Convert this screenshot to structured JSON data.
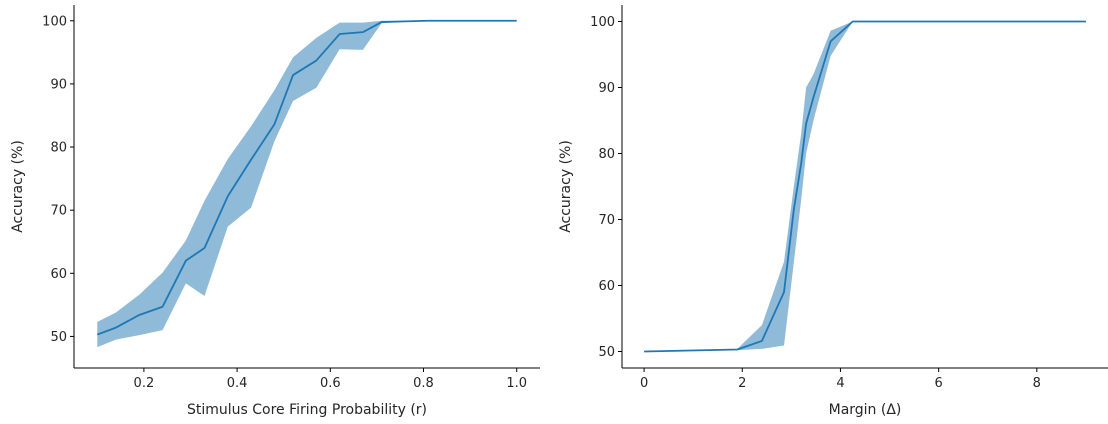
{
  "chart_data": [
    {
      "type": "line",
      "xlabel": "Stimulus Core Firing Probability (r)",
      "ylabel": "Accuracy (%)",
      "xlim": [
        0.05,
        1.05
      ],
      "ylim": [
        45,
        102.5
      ],
      "xticks": [
        0.2,
        0.4,
        0.6,
        0.8,
        1.0
      ],
      "xtick_labels": [
        "0.2",
        "0.4",
        "0.6",
        "0.8",
        "1.0"
      ],
      "yticks": [
        50,
        60,
        70,
        80,
        90,
        100
      ],
      "ytick_labels": [
        "50",
        "60",
        "70",
        "80",
        "90",
        "100"
      ],
      "grid": false,
      "colors": {
        "line": "#1f77b4",
        "band": "#1f77b4"
      },
      "series": [
        {
          "x": [
            0.1,
            0.14,
            0.19,
            0.24,
            0.29,
            0.33,
            0.38,
            0.43,
            0.48,
            0.52,
            0.57,
            0.62,
            0.67,
            0.71,
            0.76,
            0.81,
            0.86,
            0.9,
            0.95,
            1.0
          ],
          "y": [
            50.3,
            51.4,
            53.4,
            54.7,
            62.0,
            64.0,
            72.2,
            78.0,
            83.6,
            91.4,
            93.7,
            97.9,
            98.2,
            99.8,
            99.9,
            100,
            100,
            100,
            100,
            100
          ],
          "lower": [
            48.3,
            49.5,
            50.2,
            51.0,
            58.4,
            56.4,
            67.4,
            70.4,
            80.9,
            87.3,
            89.4,
            95.5,
            95.4,
            99.6,
            99.9,
            100,
            100,
            100,
            100,
            100
          ],
          "upper": [
            52.3,
            53.8,
            56.6,
            60.1,
            65.2,
            71.5,
            78.1,
            83.3,
            89.0,
            94.2,
            97.3,
            99.7,
            99.7,
            100,
            100,
            100,
            100,
            100,
            100,
            100
          ]
        }
      ]
    },
    {
      "type": "line",
      "xlabel": "Margin (Δ)",
      "ylabel": "Accuracy (%)",
      "xlim": [
        -0.45,
        9.45
      ],
      "ylim": [
        47.5,
        102.5
      ],
      "xticks": [
        0,
        2,
        4,
        6,
        8
      ],
      "xtick_labels": [
        "0",
        "2",
        "4",
        "6",
        "8"
      ],
      "yticks": [
        50,
        60,
        70,
        80,
        90,
        100
      ],
      "ytick_labels": [
        "50",
        "60",
        "70",
        "80",
        "90",
        "100"
      ],
      "grid": false,
      "colors": {
        "line": "#1f77b4",
        "band": "#1f77b4"
      },
      "series": [
        {
          "x": [
            0.0,
            1.9,
            2.4,
            2.85,
            3.05,
            3.2,
            3.3,
            3.45,
            3.8,
            4.25,
            5.0,
            6.0,
            7.0,
            8.0,
            9.0
          ],
          "y": [
            50.0,
            50.3,
            51.6,
            59.0,
            71.5,
            78.5,
            84.5,
            88.5,
            97.0,
            100,
            100,
            100,
            100,
            100,
            100
          ],
          "lower": [
            50.0,
            50.2,
            50.4,
            50.9,
            63.5,
            73.0,
            80.0,
            85.0,
            94.8,
            100,
            100,
            100,
            100,
            100,
            100
          ],
          "upper": [
            50.0,
            50.4,
            54.0,
            63.6,
            75.0,
            83.0,
            90.0,
            92.0,
            98.6,
            100,
            100,
            100,
            100,
            100,
            100
          ]
        }
      ]
    }
  ]
}
